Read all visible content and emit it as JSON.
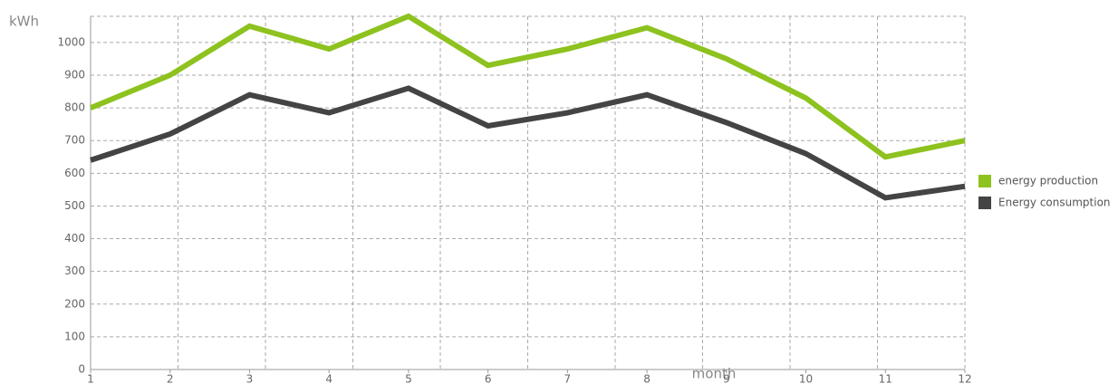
{
  "chart_data": {
    "type": "line",
    "y_label": "kWh",
    "x_label": "month",
    "categories": [
      "1",
      "2",
      "3",
      "4",
      "5",
      "6",
      "7",
      "8",
      "9",
      "10",
      "11",
      "12"
    ],
    "series": [
      {
        "name": "energy production",
        "color": "#8dc21f",
        "values": [
          800,
          900,
          1050,
          980,
          1080,
          930,
          980,
          1045,
          950,
          830,
          650,
          700
        ]
      },
      {
        "name": "Energy consumption",
        "color": "#444444",
        "values": [
          640,
          720,
          840,
          785,
          860,
          745,
          785,
          840,
          755,
          660,
          525,
          560
        ]
      }
    ],
    "ylim": [
      0,
      1080
    ],
    "yticks": [
      0,
      100,
      200,
      300,
      400,
      500,
      600,
      700,
      800,
      900,
      1000
    ],
    "grid": true,
    "legend": "right"
  }
}
